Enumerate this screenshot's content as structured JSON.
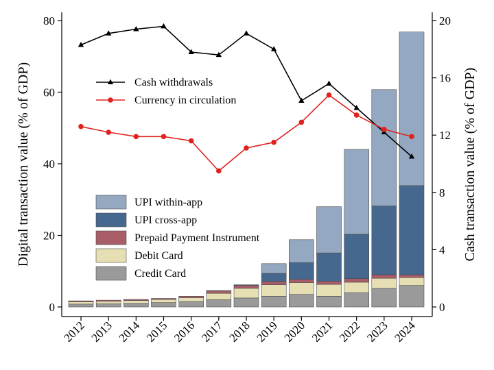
{
  "chart_data": {
    "type": "bar",
    "stacked": true,
    "categories": [
      "2012",
      "2013",
      "2014",
      "2015",
      "2016",
      "2017",
      "2018",
      "2019",
      "2020",
      "2021",
      "2022",
      "2023",
      "2024"
    ],
    "ylabel_left": "Digital transaction value (% of GDP)",
    "ylabel_right": "Cash transaction value (% of GDP)",
    "ylim_left": [
      0,
      80
    ],
    "ylim_right": [
      0,
      20
    ],
    "yticks_left": [
      0,
      20,
      40,
      60,
      80
    ],
    "yticks_right": [
      0,
      4,
      8,
      12,
      16,
      20
    ],
    "grid": false,
    "bar_series": [
      {
        "name": "Credit Card",
        "color": "#9a9a9a",
        "values": [
          0.8,
          0.9,
          1.0,
          1.2,
          1.5,
          2.0,
          2.5,
          3.0,
          3.5,
          3.0,
          4.0,
          5.2,
          6.0
        ]
      },
      {
        "name": "Debit Card",
        "color": "#e6dfb4",
        "values": [
          0.6,
          0.7,
          0.8,
          0.9,
          1.1,
          1.8,
          2.7,
          3.2,
          3.3,
          3.3,
          2.9,
          2.8,
          2.2
        ]
      },
      {
        "name": "Prepaid Payment Instrument",
        "color": "#a85d68",
        "values": [
          0.3,
          0.3,
          0.3,
          0.3,
          0.4,
          0.7,
          0.8,
          0.9,
          0.9,
          0.9,
          1.0,
          1.0,
          0.8
        ]
      },
      {
        "name": "UPI cross-app",
        "color": "#46688f",
        "values": [
          0.0,
          0.0,
          0.0,
          0.0,
          0.0,
          0.1,
          0.2,
          2.3,
          4.7,
          7.9,
          12.4,
          19.2,
          24.9
        ]
      },
      {
        "name": "UPI within-app",
        "color": "#94a9c1",
        "values": [
          0.0,
          0.0,
          0.0,
          0.0,
          0.0,
          0.0,
          0.0,
          2.7,
          6.4,
          12.9,
          23.7,
          32.5,
          42.9
        ]
      }
    ],
    "line_series": [
      {
        "name": "Cash withdrawals",
        "axis": "right",
        "color": "#000000",
        "marker": "triangle",
        "values": [
          18.3,
          19.1,
          19.4,
          19.6,
          17.8,
          17.6,
          19.1,
          18.0,
          14.4,
          15.6,
          13.9,
          12.2,
          10.5
        ]
      },
      {
        "name": "Currency in circulation",
        "axis": "right",
        "color": "#e0221f",
        "marker": "circle",
        "values": [
          12.6,
          12.2,
          11.9,
          11.9,
          11.6,
          9.5,
          11.1,
          11.5,
          12.9,
          14.8,
          13.4,
          12.4,
          11.9
        ]
      }
    ],
    "legend_lines": [
      {
        "label": "Cash withdrawals",
        "color": "#000000",
        "marker": "triangle"
      },
      {
        "label": "Currency in circulation",
        "color": "#e0221f",
        "marker": "circle"
      }
    ],
    "legend_bars": [
      {
        "label": "UPI within-app",
        "color": "#94a9c1"
      },
      {
        "label": "UPI cross-app",
        "color": "#46688f"
      },
      {
        "label": "Prepaid Payment Instrument",
        "color": "#a85d68"
      },
      {
        "label": "Debit Card",
        "color": "#e6dfb4"
      },
      {
        "label": "Credit Card",
        "color": "#9a9a9a"
      }
    ]
  }
}
